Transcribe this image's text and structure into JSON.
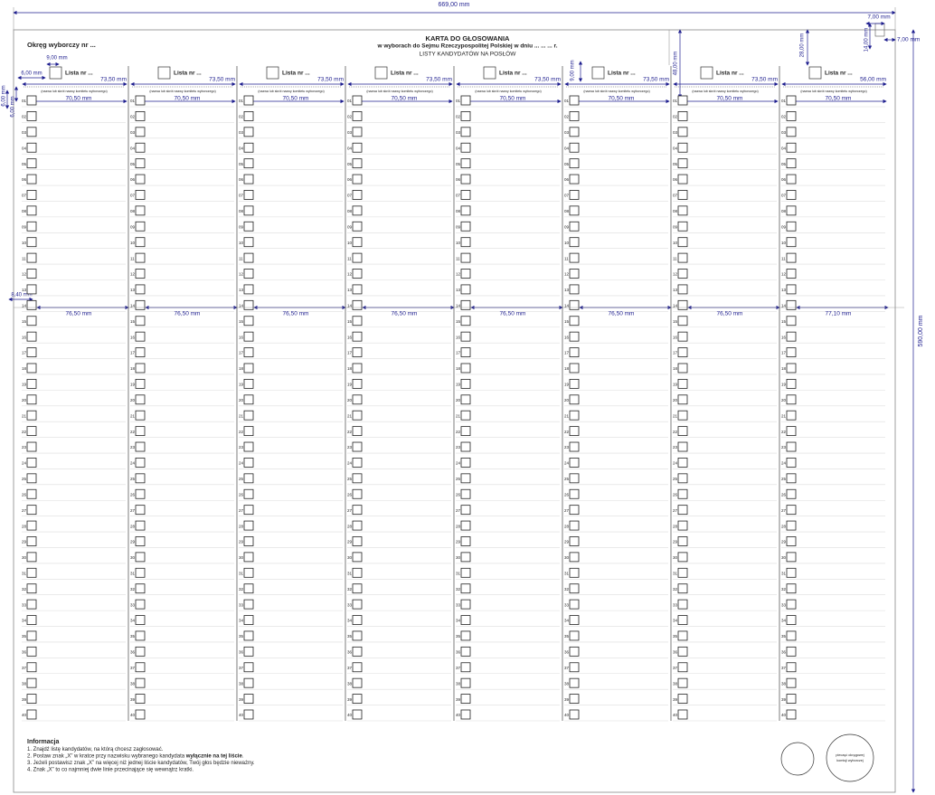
{
  "dimensions": {
    "total_width": "669,00 mm",
    "total_height": "590,00 mm",
    "corner_width": "7,00 mm",
    "corner_height": "14,00 mm",
    "corner_offset": "7,00 mm",
    "mark_offset": "28,00 mm",
    "header_height": "48,00 mm",
    "box_offset": "9,00 mm",
    "left_margin": "6,00 mm",
    "top_margin": "6,00 mm",
    "row_offset": "6,00 mm",
    "row_start": "8,40 mm",
    "list_box_gap": "9,00 mm"
  },
  "header": {
    "district": "Okręg wyborczy nr ...",
    "title": "KARTA DO GŁOSOWANIA",
    "subtitle": "w wyborach do Sejmu Rzeczypospolitej Polskiej w dniu ... ... ... r.",
    "heading": "LISTY KANDYDATÓW NA POSŁÓW"
  },
  "columns": [
    {
      "list_label": "Lista nr ...",
      "committee_note": "(nazwa lub skrót nazwy komitetu wyborczego)",
      "name_width": "73,50 mm",
      "row_width": "70,50 mm",
      "lower_width": "76,50 mm"
    },
    {
      "list_label": "Lista nr ...",
      "committee_note": "(nazwa lub skrót nazwy komitetu wyborczego)",
      "name_width": "73,50 mm",
      "row_width": "70,50 mm",
      "lower_width": "76,50 mm"
    },
    {
      "list_label": "Lista nr ...",
      "committee_note": "(nazwa lub skrót nazwy komitetu wyborczego)",
      "name_width": "73,50 mm",
      "row_width": "70,50 mm",
      "lower_width": "76,50 mm"
    },
    {
      "list_label": "Lista nr ...",
      "committee_note": "(nazwa lub skrót nazwy komitetu wyborczego)",
      "name_width": "73,50 mm",
      "row_width": "70,50 mm",
      "lower_width": "76,50 mm"
    },
    {
      "list_label": "Lista nr ...",
      "committee_note": "(nazwa lub skrót nazwy komitetu wyborczego)",
      "name_width": "73,50 mm",
      "row_width": "70,50 mm",
      "lower_width": "76,50 mm"
    },
    {
      "list_label": "Lista nr ...",
      "committee_note": "(nazwa lub skrót nazwy komitetu wyborczego)",
      "name_width": "73,50 mm",
      "row_width": "70,50 mm",
      "lower_width": "76,50 mm"
    },
    {
      "list_label": "Lista nr ...",
      "committee_note": "(nazwa lub skrót nazwy komitetu wyborczego)",
      "name_width": "73,50 mm",
      "row_width": "70,50 mm",
      "lower_width": "76,50 mm"
    },
    {
      "list_label": "Lista nr ...",
      "committee_note": "(nazwa lub skrót nazwy komitetu wyborczego)",
      "name_width": "56,00 mm",
      "row_width": "70,50 mm",
      "lower_width": "77,10 mm"
    }
  ],
  "row_numbers": [
    "01",
    "02",
    "03",
    "04",
    "05",
    "06",
    "07",
    "08",
    "09",
    "10",
    "11",
    "12",
    "13",
    "14",
    "15",
    "16",
    "17",
    "18",
    "19",
    "20",
    "21",
    "22",
    "23",
    "24",
    "25",
    "26",
    "27",
    "28",
    "29",
    "30",
    "31",
    "32",
    "33",
    "34",
    "35",
    "36",
    "37",
    "38",
    "39",
    "40"
  ],
  "info": {
    "title": "Informacja",
    "items": [
      [
        {
          "text": "1. Znajdź listę kandydatów, na którą chcesz zagłosować."
        }
      ],
      [
        {
          "text": "2. Postaw znak „X” w kratce przy nazwisku wybranego kandydata "
        },
        {
          "text": "wyłącznie na tej liście",
          "bold": true
        },
        {
          "text": "."
        }
      ],
      [
        {
          "text": "3. Jeżeli postawisz znak „X” na więcej niż jednej liście kandydatów, Twój głos będzie nieważny."
        }
      ],
      [
        {
          "text": "4. Znak „X” to co najmniej dwie linie przecinające się wewnątrz kratki."
        }
      ]
    ]
  },
  "stamp": {
    "lines": [
      "pieczęć okręgowej",
      "komisji wyborczej"
    ]
  }
}
